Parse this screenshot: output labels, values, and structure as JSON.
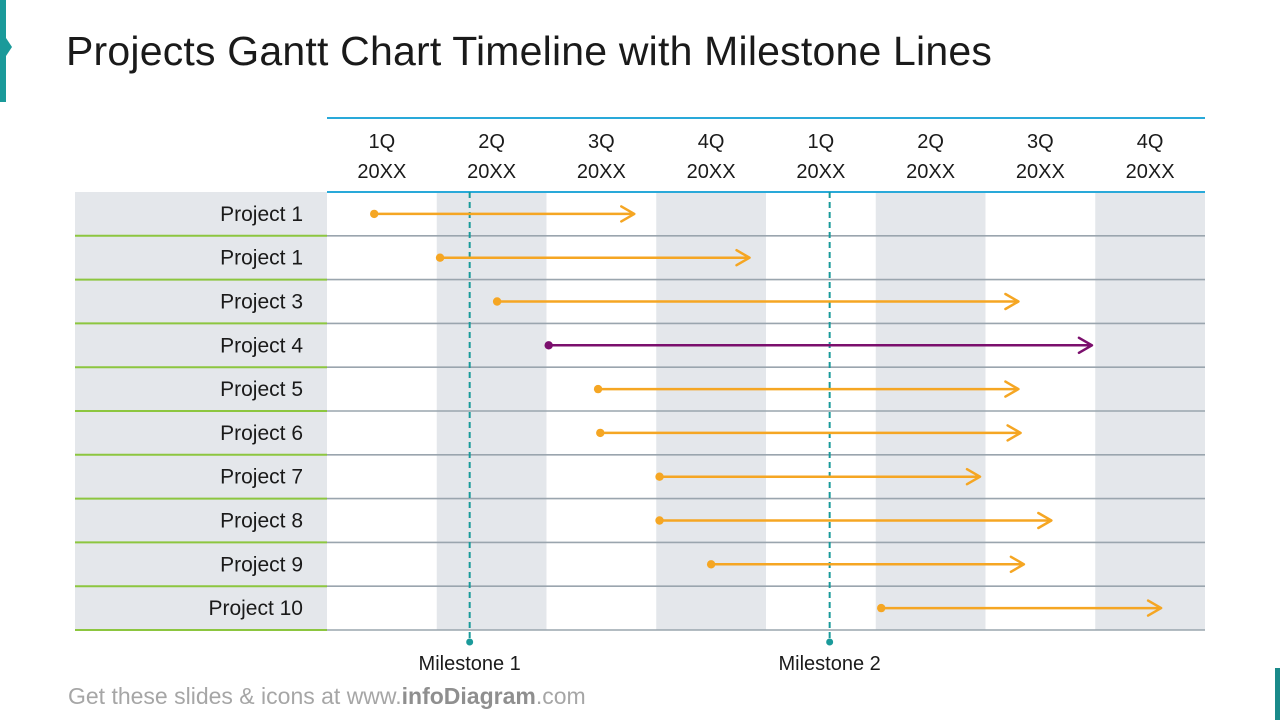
{
  "title": "Projects Gantt Chart Timeline with Milestone Lines",
  "footer": {
    "prefix": "Get these slides & icons at www.",
    "brand": "infoDiagram",
    "suffix": ".com"
  },
  "colors": {
    "accent": "#1a9a9a",
    "header_line": "#29a9d9",
    "row_line": "#9aa5ae",
    "label_line": "#8cc63f",
    "band": "#e4e7eb",
    "arrow_default": "#f5a623",
    "arrow_highlight": "#7b0f6d",
    "milestone": "#1a9a9a"
  },
  "chart_data": {
    "type": "gantt",
    "title": "Projects Gantt Chart Timeline with Milestone Lines",
    "quarters": [
      {
        "q": "1Q",
        "year": "20XX"
      },
      {
        "q": "2Q",
        "year": "20XX"
      },
      {
        "q": "3Q",
        "year": "20XX"
      },
      {
        "q": "4Q",
        "year": "20XX"
      },
      {
        "q": "1Q",
        "year": "20XX"
      },
      {
        "q": "2Q",
        "year": "20XX"
      },
      {
        "q": "3Q",
        "year": "20XX"
      },
      {
        "q": "4Q",
        "year": "20XX"
      }
    ],
    "tasks": [
      {
        "label": "Project 1",
        "start": 0.43,
        "end": 2.8,
        "color": "arrow_default"
      },
      {
        "label": "Project 1",
        "start": 1.03,
        "end": 3.85,
        "color": "arrow_default"
      },
      {
        "label": "Project 3",
        "start": 1.55,
        "end": 6.3,
        "color": "arrow_default"
      },
      {
        "label": "Project 4",
        "start": 2.02,
        "end": 6.97,
        "color": "arrow_highlight"
      },
      {
        "label": "Project 5",
        "start": 2.47,
        "end": 6.3,
        "color": "arrow_default"
      },
      {
        "label": "Project 6",
        "start": 2.49,
        "end": 6.32,
        "color": "arrow_default"
      },
      {
        "label": "Project 7",
        "start": 3.03,
        "end": 5.95,
        "color": "arrow_default"
      },
      {
        "label": "Project 8",
        "start": 3.03,
        "end": 6.6,
        "color": "arrow_default"
      },
      {
        "label": "Project 9",
        "start": 3.5,
        "end": 6.35,
        "color": "arrow_default"
      },
      {
        "label": "Project 10",
        "start": 5.05,
        "end": 7.6,
        "color": "arrow_default"
      }
    ],
    "milestones": [
      {
        "label": "Milestone 1",
        "at": 1.3
      },
      {
        "label": "Milestone 2",
        "at": 4.58
      }
    ],
    "shaded_columns": [
      1,
      3,
      5,
      7
    ]
  }
}
